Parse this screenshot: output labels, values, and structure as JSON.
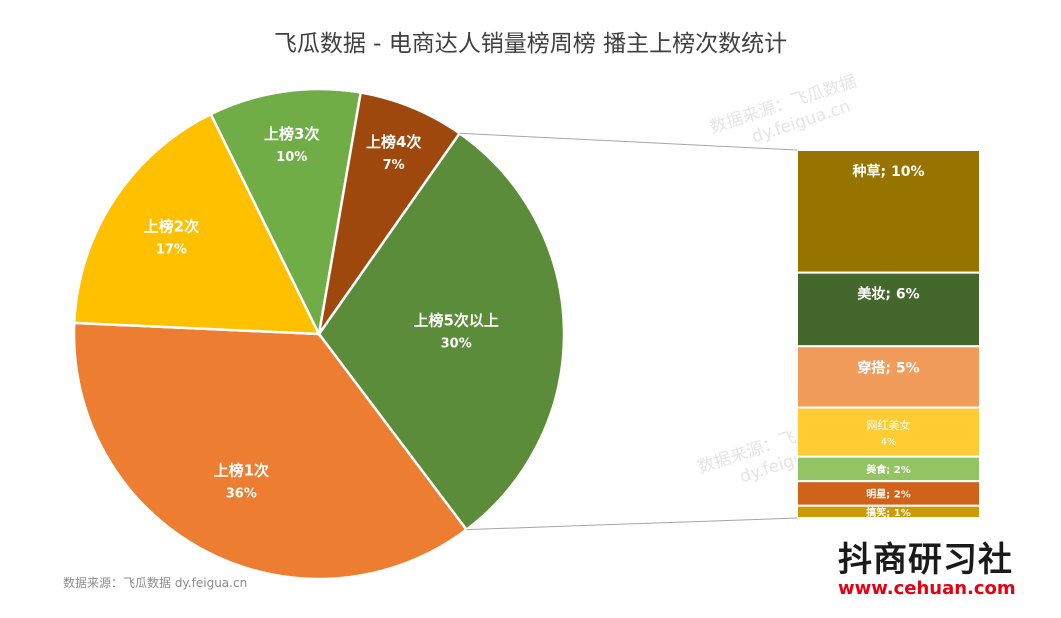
{
  "chart_data": {
    "type": "pie",
    "title": "飞瓜数据 - 电商达人销量榜周榜 播主上榜次数统计",
    "series": [
      {
        "name": "上榜1次",
        "value": 36,
        "pct": "36%",
        "color": "#ED7D31"
      },
      {
        "name": "上榜2次",
        "value": 17,
        "pct": "17%",
        "color": "#FFC000"
      },
      {
        "name": "上榜3次",
        "value": 10,
        "pct": "10%",
        "color": "#70AD47"
      },
      {
        "name": "上榜4次",
        "value": 7,
        "pct": "7%",
        "color": "#9E480E"
      },
      {
        "name": "上榜5次以上",
        "value": 30,
        "pct": "30%",
        "color": "#5B8C3A"
      }
    ],
    "breakdown": [
      {
        "name": "种草",
        "value": 10,
        "label": "种草; 10%",
        "color": "#977300"
      },
      {
        "name": "美妆",
        "value": 6,
        "label": "美妆; 6%",
        "color": "#44682B"
      },
      {
        "name": "穿搭",
        "value": 5,
        "label": "穿搭; 5%",
        "color": "#F19C5A"
      },
      {
        "name": "网红美女",
        "value": 4,
        "label": "网红美女",
        "label2": "4%",
        "color": "#FFCC33"
      },
      {
        "name": "美食",
        "value": 2,
        "label": "美食; 2%",
        "color": "#93C463"
      },
      {
        "name": "明星",
        "value": 2,
        "label": "明星; 2%",
        "color": "#D0621A"
      },
      {
        "name": "搞笑",
        "value": 1,
        "label": "搞笑; 1%",
        "color": "#CC9A08"
      }
    ]
  },
  "source_text": "数据来源：飞瓜数据 dy.feigua.cn",
  "brand": {
    "name": "抖商研习社",
    "url": "www.cehuan.com"
  },
  "watermark": {
    "line1": "数据来源：飞瓜数据",
    "line2": "dy.feigua.cn"
  }
}
